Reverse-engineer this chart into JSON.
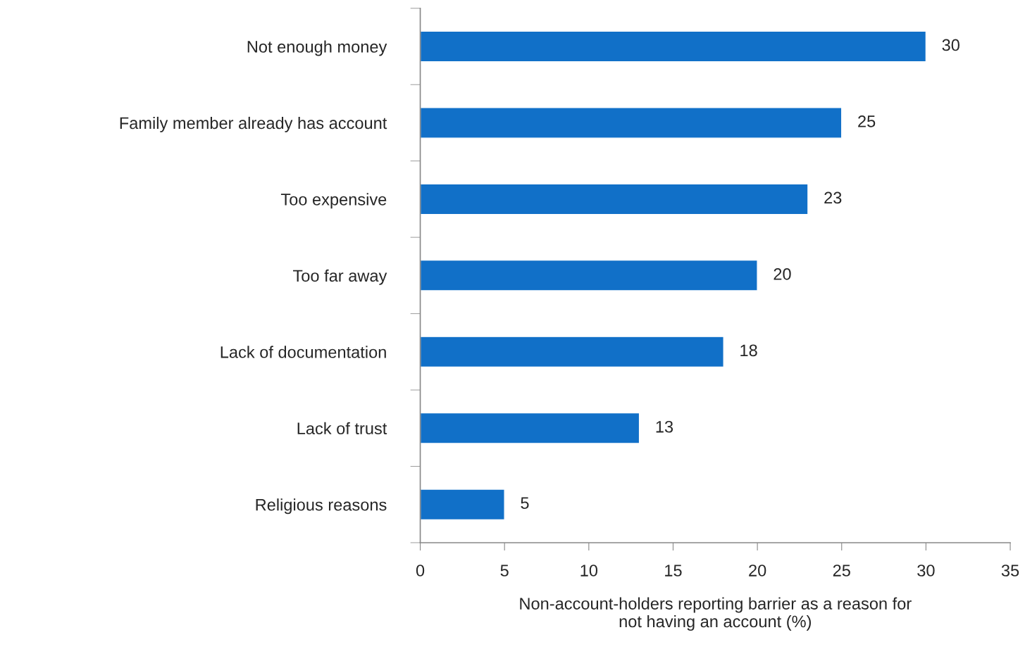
{
  "chart_data": {
    "type": "bar",
    "orientation": "horizontal",
    "categories": [
      "Not enough money",
      "Family member already has account",
      "Too expensive",
      "Too far away",
      "Lack of documentation",
      "Lack of trust",
      "Religious reasons"
    ],
    "values": [
      30,
      25,
      23,
      20,
      18,
      13,
      5
    ],
    "color": "#1170c8",
    "xlabel": "Non-account-holders reporting barrier as a reason for\nnot having an account (%)",
    "xlim": [
      0,
      35
    ],
    "xticks": [
      0,
      5,
      10,
      15,
      20,
      25,
      30,
      35
    ],
    "data_labels": true
  }
}
